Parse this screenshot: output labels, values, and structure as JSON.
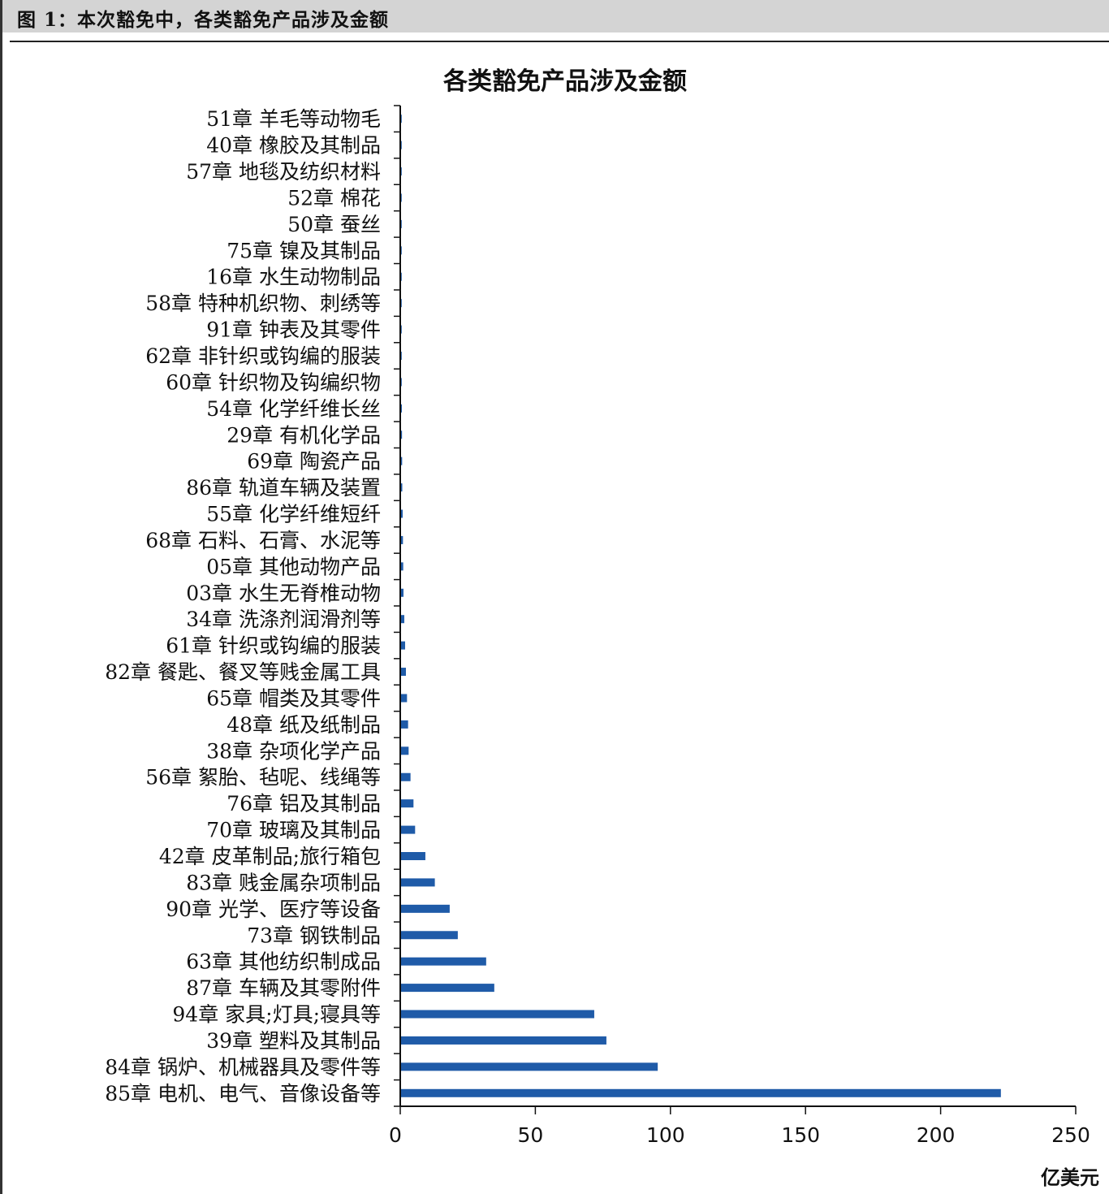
{
  "header": {
    "caption": "图 1：本次豁免中，各类豁免产品涉及金额"
  },
  "chart_data": {
    "type": "bar",
    "orientation": "horizontal",
    "title": "各类豁免产品涉及金额",
    "unit_label": "亿美元",
    "xlim": [
      0,
      250
    ],
    "xticks": [
      0,
      50,
      100,
      150,
      200,
      250
    ],
    "grid": false,
    "bar_color": "#1f5ba8",
    "categories": [
      "51章 羊毛等动物毛",
      "40章 橡胶及其制品",
      "57章 地毯及纺织材料",
      "52章 棉花",
      "50章 蚕丝",
      "75章 镍及其制品",
      "16章 水生动物制品",
      "58章 特种机织物、刺绣等",
      "91章 钟表及其零件",
      "62章 非针织或钩编的服装",
      "60章 针织物及钩编织物",
      "54章 化学纤维长丝",
      "29章 有机化学品",
      "69章 陶瓷产品",
      "86章 轨道车辆及装置",
      "55章 化学纤维短纤",
      "68章 石料、石膏、水泥等",
      "05章 其他动物产品",
      "03章 水生无脊椎动物",
      "34章 洗涤剂润滑剂等",
      "61章 针织或钩编的服装",
      "82章 餐匙、餐叉等贱金属工具",
      "65章 帽类及其零件",
      "48章 纸及纸制品",
      "38章 杂项化学产品",
      "56章 絮胎、毡呢、线绳等",
      "76章 铝及其制品",
      "70章 玻璃及其制品",
      "42章 皮革制品;旅行箱包",
      "83章 贱金属杂项制品",
      "90章 光学、医疗等设备",
      "73章 钢铁制品",
      "63章 其他纺织制成品",
      "87章 车辆及其零附件",
      "94章 家具;灯具;寝具等",
      "39章 塑料及其制品",
      "84章 锅炉、机械器具及零件等",
      "85章 电机、电气、音像设备等"
    ],
    "values": [
      0.03,
      0.05,
      0.05,
      0.06,
      0.06,
      0.08,
      0.1,
      0.12,
      0.15,
      0.2,
      0.25,
      0.3,
      0.35,
      0.4,
      0.45,
      0.6,
      0.7,
      0.8,
      0.9,
      1.2,
      1.5,
      1.8,
      2.2,
      2.6,
      2.8,
      3.5,
      4.6,
      5.2,
      9.0,
      12.5,
      18.0,
      21.0,
      31.5,
      34.5,
      71.5,
      76.0,
      95.0,
      222.0
    ]
  }
}
